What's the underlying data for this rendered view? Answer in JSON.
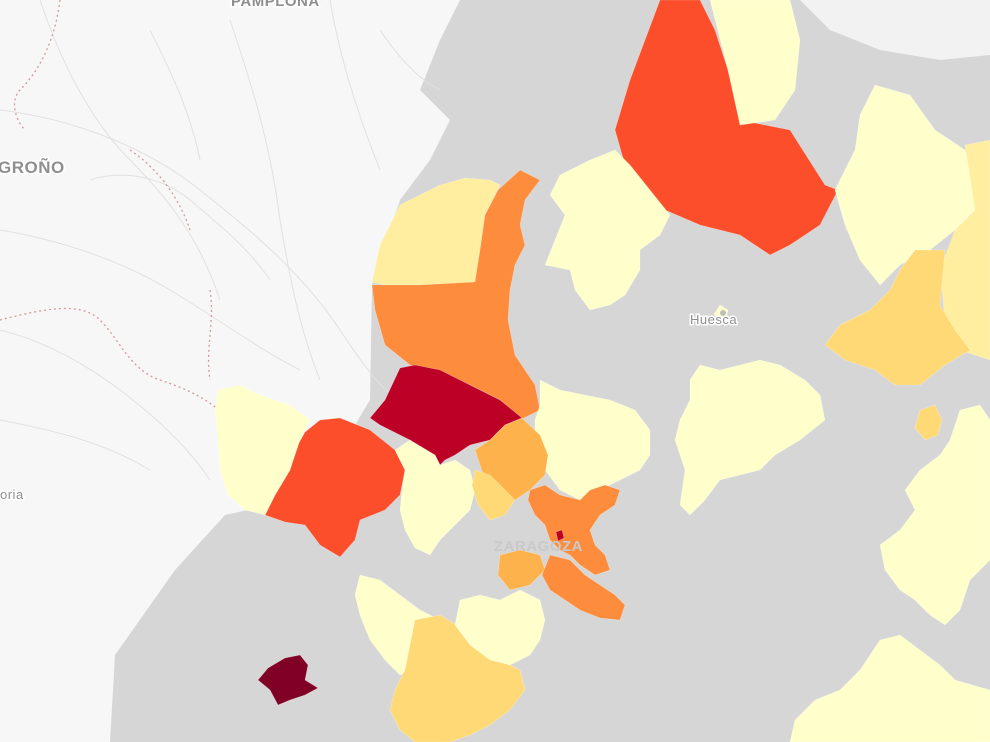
{
  "map": {
    "labels": {
      "pamplona": "PAMPLONA",
      "logrono": "GROÑO",
      "huesca": "Huesca",
      "zaragoza": "ZARAGOZA",
      "soria": "oria"
    },
    "colors": {
      "base_land": "#f7f7f7",
      "region_gray": "#d6d6d6",
      "scale": [
        "#ffffcc",
        "#ffeda0",
        "#fed976",
        "#feb24c",
        "#fd8d3c",
        "#fc4e2a",
        "#bd0026",
        "#800026"
      ]
    },
    "municipalities": [
      {
        "id": "north-east-large",
        "level": 5
      },
      {
        "id": "north-east-strip",
        "level": 0
      },
      {
        "id": "far-east-a",
        "level": 0
      },
      {
        "id": "far-east-b",
        "level": 1
      },
      {
        "id": "east-mid",
        "level": 2
      },
      {
        "id": "east-small",
        "level": 2
      },
      {
        "id": "north-center",
        "level": 1
      },
      {
        "id": "center-north-orange",
        "level": 4
      },
      {
        "id": "center-west-yellow",
        "level": 0
      },
      {
        "id": "huesca-west",
        "level": 0
      },
      {
        "id": "center-east-a",
        "level": 0
      },
      {
        "id": "center-east-b",
        "level": 0
      },
      {
        "id": "crimson-center",
        "level": 6
      },
      {
        "id": "orange-red-west",
        "level": 5
      },
      {
        "id": "west-yellow",
        "level": 0
      },
      {
        "id": "center-south-yellow",
        "level": 0
      },
      {
        "id": "zaragoza-north-a",
        "level": 3
      },
      {
        "id": "zaragoza-north-b",
        "level": 3
      },
      {
        "id": "zaragoza-core",
        "level": 4
      },
      {
        "id": "zaragoza-south",
        "level": 4
      },
      {
        "id": "zaragoza-point",
        "level": 6
      },
      {
        "id": "south-yellow-a",
        "level": 0
      },
      {
        "id": "south-yellow-b",
        "level": 2
      },
      {
        "id": "south-yellow-c",
        "level": 0
      },
      {
        "id": "south-small",
        "level": 2
      },
      {
        "id": "south-west-dark",
        "level": 7
      },
      {
        "id": "south-east-a",
        "level": 0
      },
      {
        "id": "south-east-b",
        "level": 0
      }
    ]
  }
}
